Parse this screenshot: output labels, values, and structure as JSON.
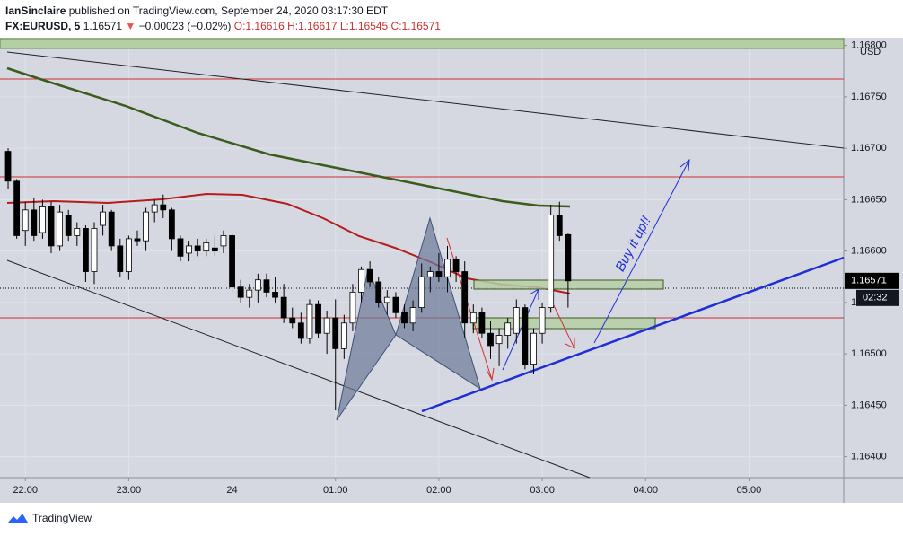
{
  "header": {
    "author": "IanSinclaire",
    "published": "published on TradingView.com, September 24, 2020 03:17:30 EDT",
    "symbol": "FX:EURUSD, 5",
    "last": "1.16571",
    "arrow": "▼",
    "change": "−0.00023 (−0.02%)",
    "ohlc": "O:1.16616 H:1.16617 L:1.16545 C:1.16571"
  },
  "chart_data": {
    "type": "candlestick",
    "currency": "USD",
    "open": [
      1.16697,
      1.16668,
      1.1662,
      1.1664,
      1.16618,
      1.16643,
      1.16605,
      1.16635,
      1.16615,
      1.16622,
      1.1658,
      1.16625,
      1.16638,
      1.16605,
      1.1658,
      1.16612,
      1.1661,
      1.16638,
      1.16645,
      1.1664,
      1.16612,
      1.16598,
      1.16605,
      1.166,
      1.16603,
      1.16605,
      1.16615,
      1.16565,
      1.16555,
      1.16562,
      1.16572,
      1.1656,
      1.16555,
      1.16535,
      1.1653,
      1.16515,
      1.16548,
      1.1652,
      1.16535,
      1.16505,
      1.1653,
      1.1656,
      1.16582,
      1.1657,
      1.1655,
      1.16555,
      1.1654,
      1.1653,
      1.16545,
      1.16575,
      1.1658,
      1.16575,
      1.16592,
      1.1658,
      1.1653,
      1.1654,
      1.1652,
      1.1651,
      1.16518,
      1.1652,
      1.16545,
      1.1649,
      1.1652,
      1.16545,
      1.16635,
      1.16616
    ],
    "high": [
      1.167,
      1.1667,
      1.16648,
      1.16652,
      1.1665,
      1.16648,
      1.16645,
      1.1664,
      1.16628,
      1.16625,
      1.16628,
      1.16645,
      1.1664,
      1.16612,
      1.16615,
      1.1662,
      1.16642,
      1.1665,
      1.16655,
      1.16642,
      1.16615,
      1.1661,
      1.16612,
      1.16612,
      1.16615,
      1.1662,
      1.16618,
      1.16572,
      1.16568,
      1.16578,
      1.16578,
      1.16575,
      1.16568,
      1.16545,
      1.1654,
      1.16553,
      1.16552,
      1.16542,
      1.16553,
      1.16538,
      1.16568,
      1.16585,
      1.1659,
      1.16575,
      1.16562,
      1.1656,
      1.16548,
      1.16552,
      1.16588,
      1.16585,
      1.16598,
      1.16605,
      1.16595,
      1.1659,
      1.16548,
      1.16545,
      1.16532,
      1.16525,
      1.16535,
      1.16553,
      1.16548,
      1.16525,
      1.1655,
      1.16645,
      1.16648,
      1.16617
    ],
    "low": [
      1.1666,
      1.16612,
      1.16605,
      1.1661,
      1.16612,
      1.16598,
      1.166,
      1.1661,
      1.16605,
      1.1657,
      1.16568,
      1.16615,
      1.166,
      1.16575,
      1.16572,
      1.16605,
      1.166,
      1.16628,
      1.16632,
      1.166,
      1.1659,
      1.1659,
      1.16595,
      1.16595,
      1.16595,
      1.16598,
      1.1656,
      1.1655,
      1.16545,
      1.1655,
      1.16555,
      1.1655,
      1.1653,
      1.16525,
      1.1651,
      1.1651,
      1.16515,
      1.165,
      1.16445,
      1.16495,
      1.16522,
      1.1655,
      1.16565,
      1.16545,
      1.16538,
      1.16535,
      1.16525,
      1.16522,
      1.1654,
      1.1656,
      1.1657,
      1.1656,
      1.1657,
      1.16515,
      1.1652,
      1.16515,
      1.16495,
      1.16488,
      1.16505,
      1.1651,
      1.16485,
      1.1648,
      1.1651,
      1.1654,
      1.1661,
      1.16545
    ],
    "close": [
      1.16668,
      1.16615,
      1.1664,
      1.16615,
      1.16643,
      1.16605,
      1.16638,
      1.16615,
      1.16622,
      1.1658,
      1.16622,
      1.16638,
      1.16605,
      1.1658,
      1.16612,
      1.1661,
      1.16638,
      1.16645,
      1.1664,
      1.16612,
      1.16595,
      1.16605,
      1.166,
      1.16608,
      1.166,
      1.16615,
      1.16565,
      1.16555,
      1.16562,
      1.16572,
      1.1656,
      1.16555,
      1.16535,
      1.1653,
      1.16515,
      1.16548,
      1.1652,
      1.16535,
      1.16505,
      1.1653,
      1.1656,
      1.16582,
      1.1657,
      1.1655,
      1.16555,
      1.1654,
      1.1653,
      1.16545,
      1.16575,
      1.1658,
      1.16575,
      1.16592,
      1.1658,
      1.1653,
      1.1654,
      1.1652,
      1.16508,
      1.16518,
      1.1653,
      1.16545,
      1.1649,
      1.1652,
      1.16545,
      1.16635,
      1.16615,
      1.16571
    ],
    "up_color": "#ffffff",
    "down_color": "#000000",
    "xlim": [
      -0.94,
      97
    ],
    "xticks": [
      {
        "value": 2,
        "label": "22:00"
      },
      {
        "value": 14,
        "label": "23:00"
      },
      {
        "value": 26,
        "label": "24"
      },
      {
        "value": 38,
        "label": "01:00"
      },
      {
        "value": 50,
        "label": "02:00"
      },
      {
        "value": 62,
        "label": "03:00"
      },
      {
        "value": 74,
        "label": "04:00"
      },
      {
        "value": 86,
        "label": "05:00"
      }
    ],
    "ylim": [
      1.16387,
      1.16801
    ],
    "yticks": [
      {
        "value": 1.168,
        "label": "1.16800"
      },
      {
        "value": 1.1675,
        "label": "1.16750"
      },
      {
        "value": 1.167,
        "label": "1.16700"
      },
      {
        "value": 1.1665,
        "label": "1.16650"
      },
      {
        "value": 1.166,
        "label": "1.16600"
      },
      {
        "value": 1.1655,
        "label": "1.16550"
      },
      {
        "value": 1.165,
        "label": "1.16500"
      },
      {
        "value": 1.1645,
        "label": "1.16450"
      },
      {
        "value": 1.164,
        "label": "1.16400"
      }
    ],
    "grid": true,
    "last_price": {
      "value": 1.16571,
      "label": "1.16571"
    },
    "countdown": "02:32",
    "annotation": "Buy it up!!"
  },
  "footer": {
    "brand": "TradingView"
  }
}
